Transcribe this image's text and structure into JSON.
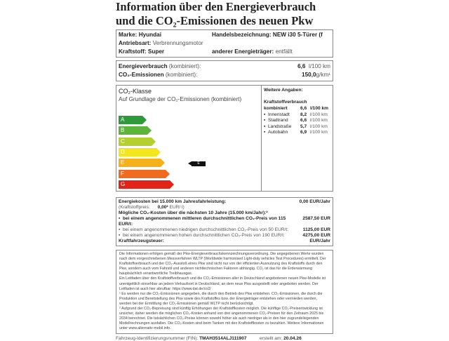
{
  "title_line1": "Information über den Energieverbrauch",
  "title_line2": "und die CO₂-Emissionen des neuen Pkw",
  "vehicle": {
    "marke_label": "Marke:",
    "marke": "Hyundai",
    "handel_label": "Handelsbezeichnung:",
    "handel": "NEW i30 5-Türer (f",
    "antrieb_label": "Antriebsart:",
    "antrieb": "Verbrennungsmotor",
    "kraftstoff_label": "Kraftstoff:",
    "kraftstoff": "Super",
    "anderer_label": "anderer Energieträger:",
    "anderer": "entfällt"
  },
  "consumption": {
    "energie_label": "Energieverbrauch",
    "energie_sub": "(kombiniert):",
    "energie_value": "6,6",
    "energie_unit": "l/100 km",
    "co2_label": "CO₂-Emissionen",
    "co2_sub": "(kombiniert):",
    "co2_value": "150,0",
    "co2_unit": "g/km¹"
  },
  "co2class": {
    "title": "CO₂-Klasse",
    "subtitle": "Auf Grundlage der CO₂-Emissionen (kombiniert)",
    "classes": [
      {
        "label": "A",
        "color": "#2e9a3c"
      },
      {
        "label": "B",
        "color": "#5cb43a"
      },
      {
        "label": "C",
        "color": "#b5cf2e"
      },
      {
        "label": "D",
        "color": "#f4e61c"
      },
      {
        "label": "E",
        "color": "#f6b11a"
      },
      {
        "label": "F",
        "color": "#ef6b1f"
      },
      {
        "label": "G",
        "color": "#e2231a"
      }
    ],
    "current": "E"
  },
  "weitere": {
    "title": "Weitere Angaben:",
    "kv_title": "Kraftstoffverbrauch",
    "rows": [
      {
        "label": "kombiniert",
        "value": "6,6",
        "unit": "l/100 km"
      },
      {
        "label": "Innenstadt",
        "value": "8,2",
        "unit": "l/100 km"
      },
      {
        "label": "Stadtrand",
        "value": "6,6",
        "unit": "l/100 km"
      },
      {
        "label": "Landstraße",
        "value": "5,7",
        "unit": "l/100 km"
      },
      {
        "label": "Autobahn",
        "value": "6,9",
        "unit": "l/100 km"
      }
    ]
  },
  "costs": {
    "energie_label": "Energiekosten bei 15.000 km Jahresfahrleistung:",
    "energie_value": "0,00 EUR/Jahr",
    "preis_label": "(Kraftstoffpreis:",
    "preis_value": "0,00²",
    "preis_unit": "EUR/   l)",
    "co2_title": "Mögliche CO₂-Kosten über die nächsten 10 Jahre (15.000 km/Jahr):²",
    "rows": [
      {
        "text": "bei einem angenommenen mittleren durchschnittlichen CO₂-Preis von  115  EUR/t:",
        "value": "2587,50 EUR"
      },
      {
        "text": "bei einem angenommenen niedrigen durchschnittlichen CO₂-Preis von    50  EUR/t:",
        "value": "1125,00 EUR"
      },
      {
        "text": "bei einem angenommenen hohen durchschnittlichen CO₂-Preis von  190  EUR/t:",
        "value": "4275,00 EUR"
      }
    ],
    "steuer_label": "Kraftfahrzeugsteuer:",
    "steuer_value": "EUR/Jahr"
  },
  "fine": {
    "p1": "Die Informationen erfolgen gemäß der Pkw-Energieverbrauchskennzeichnungsverordnung. Die angegebenen Werte wurden nach dem vorgeschriebenen Messverfahren WLTP (Worldwide harmonised Light-duty vehicles Test Procedures) ermittelt. Der Kraftstoffverbrauch und der CO₂-Ausstoß eines Pkw sind nicht nur von der effizienten Ausnutzung des Kraftstoffs durch den Pkw, sondern auch vom Fahrstil und anderen nichttechnischen Faktoren abhängig. CO₂ ist das für die Erderwärmung hauptsächlich verantwortliche Treibhausgas.",
    "p2": "Ein Leitfaden über den Kraftstoffverbrauch und die CO₂-Emissionen aller in Deutschland angebotenen neuen Pkw-Modelle ist unentgeltlich einsehbar an jedem Verkaufsort in Deutschland, an dem neue Pkw ausgestellt oder angeboten werden. Der Leitfaden ist auch hier abrufbar:  https://www.dat.de/co2/",
    "p3": "¹ Es werden nur die CO₂-Emissionen angegeben, die durch den Betrieb des Pkw entstehen. CO₂-Emissionen, die durch die Produktion und Bereitstellung des Pkw sowie des Kraftstoffes bzw. der Energieträger entstehen oder vermieden werden, werden bei der Ermittlung der CO₂-Emissionen gemäß WLTP nicht berücksichtigt.",
    "p4": "² Aufgrund der CO₂-Bepreisung sind künftig Erhöhungen der Kraftstoffkosten möglich. Die künftige CO₂-Preisentwicklung ist unsicher, daher werden die möglichen CO₂-Kosten anhand von drei angenommenen CO₂-Preisen für den Zeitraum  2025  bis  2034  berechnet. Die tatsächlichen CO₂-Preise können sowohl höher als auch niedriger als in den hier zugrundeliegenden Modellrechnungen ausfallen. Die CO₂-Kosten sind beim Tanken mit den Kraftstoffkosten zu bezahlen. Weitere Informationen unter www.alternativ-mobil.info."
  },
  "footer": {
    "fin_label": "Fahrzeug-Identifizierungsnummer (FIN):",
    "fin": "TMAH3514ALJ111907",
    "date_label": "erstellt am:",
    "date": "20.04.26"
  }
}
